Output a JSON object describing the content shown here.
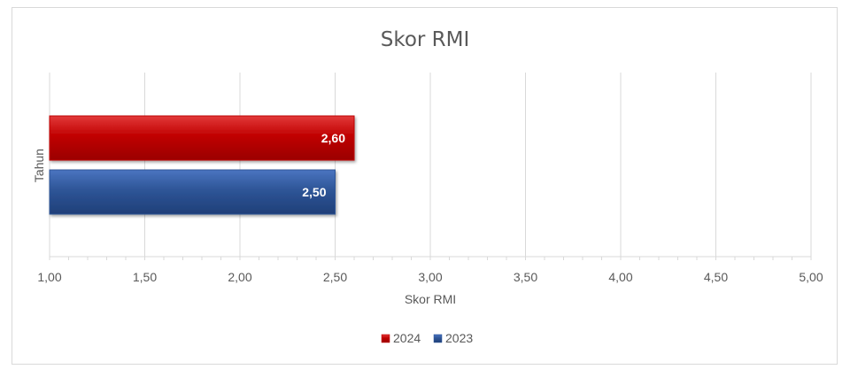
{
  "chart_data": {
    "type": "bar",
    "orientation": "horizontal",
    "title": "Skor RMI",
    "xlabel": "Skor RMI",
    "ylabel": "Tahun",
    "xlim": [
      1.0,
      5.0
    ],
    "x_ticks": [
      "1,00",
      "1,50",
      "2,00",
      "2,50",
      "3,00",
      "3,50",
      "4,00",
      "4,50",
      "5,00"
    ],
    "x_tick_values": [
      1.0,
      1.5,
      2.0,
      2.5,
      3.0,
      3.5,
      4.0,
      4.5,
      5.0
    ],
    "grid": "vertical",
    "legend_position": "bottom",
    "series": [
      {
        "name": "2024",
        "value": 2.6,
        "label": "2,60",
        "color": "#c00000"
      },
      {
        "name": "2023",
        "value": 2.5,
        "label": "2,50",
        "color": "#2e5597"
      }
    ]
  }
}
